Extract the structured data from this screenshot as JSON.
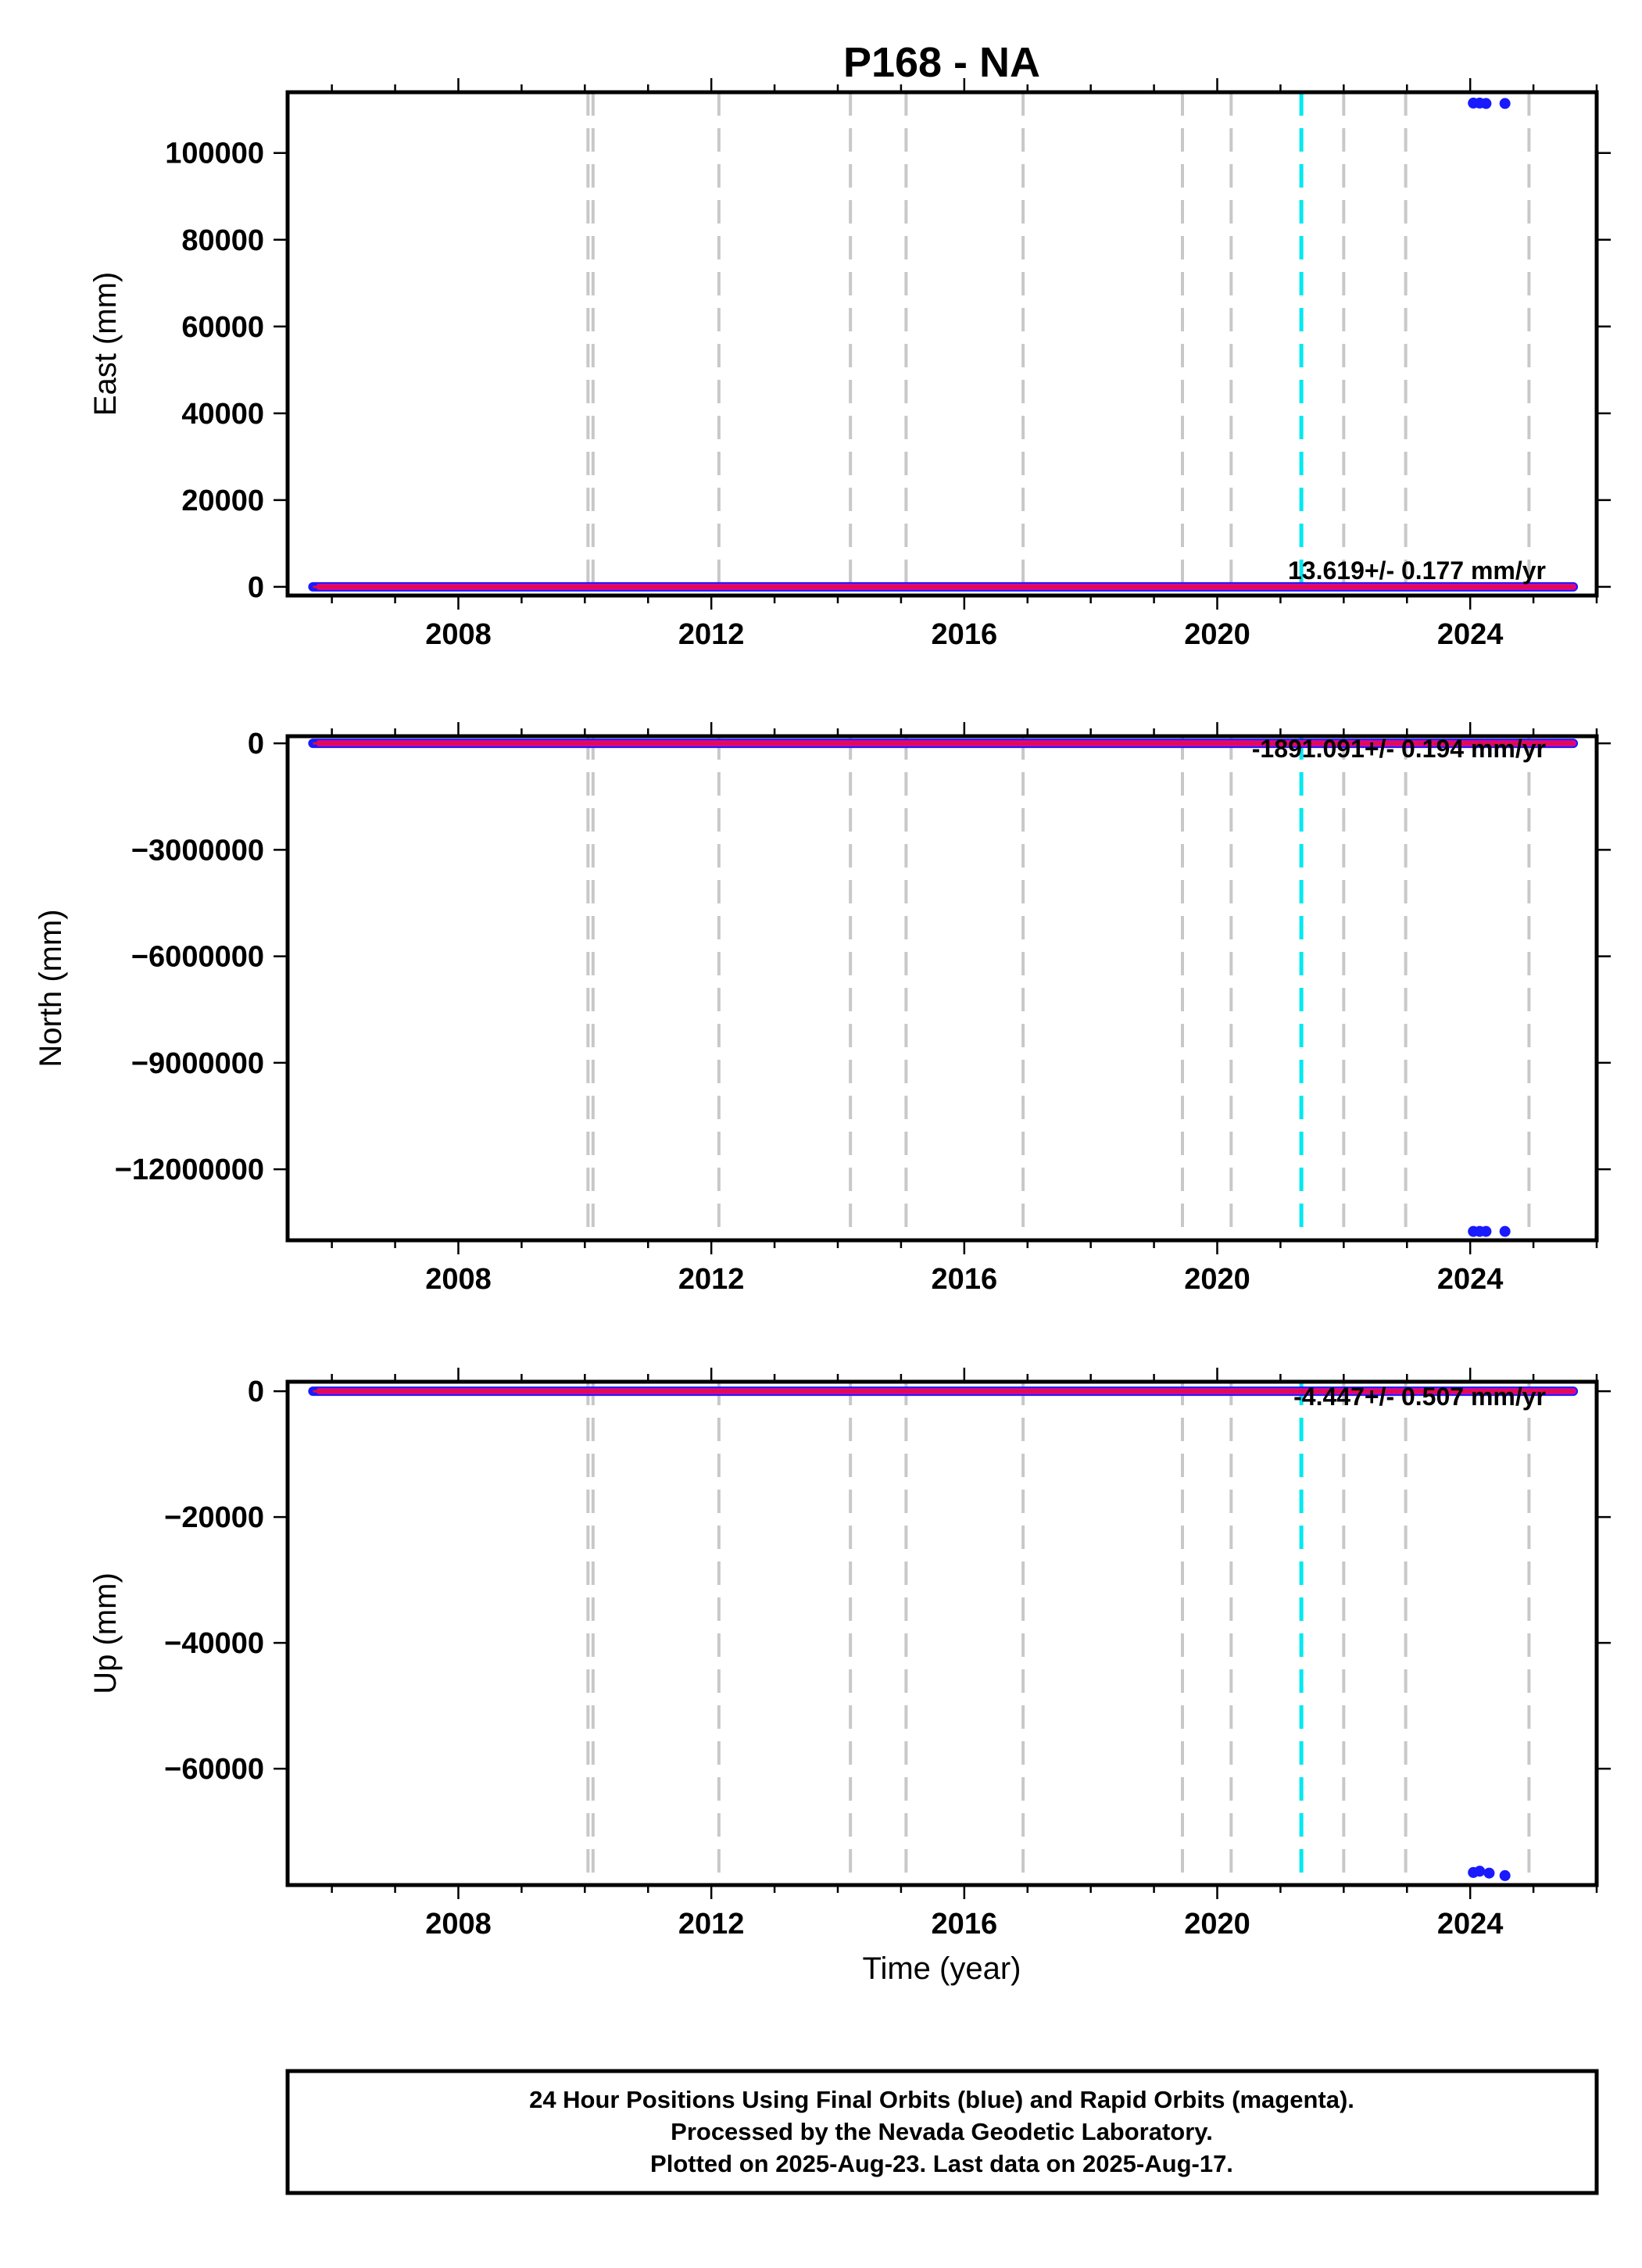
{
  "title": "P168 - NA",
  "x_axis_label": "Time (year)",
  "footer": {
    "line1": "24 Hour Positions Using Final Orbits (blue) and Rapid Orbits (magenta).",
    "line2": "Processed by the Nevada Geodetic Laboratory.",
    "line3": "Plotted on 2025-Aug-23. Last data on 2025-Aug-17."
  },
  "colors": {
    "final_orbits": "#1a1aff",
    "rapid_orbits": "#ff0080",
    "trend_line": "#e0103a",
    "event_lines": "#c8c8c8",
    "equipment_change": "#00e8f0"
  },
  "chart_data": [
    {
      "type": "scatter",
      "name": "East",
      "ylabel": "East (mm)",
      "xlim": [
        2005.3,
        2026.0
      ],
      "ylim": [
        -2000,
        114000
      ],
      "yticks": [
        0,
        20000,
        40000,
        60000,
        80000,
        100000
      ],
      "ytick_labels": [
        "0",
        "20000",
        "40000",
        "60000",
        "80000",
        "100000"
      ],
      "xticks": [
        2008,
        2012,
        2016,
        2020,
        2024
      ],
      "xtick_labels": [
        "2008",
        "2012",
        "2016",
        "2020",
        "2024"
      ],
      "rate_label": "13.619+/- 0.177 mm/yr",
      "main_series": {
        "x_start": 2005.7,
        "x_end": 2025.63,
        "y": 0
      },
      "outliers": [
        {
          "x": 2024.05,
          "y": 111500
        },
        {
          "x": 2024.15,
          "y": 111500
        },
        {
          "x": 2024.25,
          "y": 111400
        },
        {
          "x": 2024.55,
          "y": 111400
        }
      ]
    },
    {
      "type": "scatter",
      "name": "North",
      "ylabel": "North (mm)",
      "xlim": [
        2005.3,
        2026.0
      ],
      "ylim": [
        -14000000,
        200000
      ],
      "yticks": [
        0,
        -3000000,
        -6000000,
        -9000000,
        -12000000
      ],
      "ytick_labels": [
        "0",
        "−3000000",
        "−6000000",
        "−9000000",
        "−12000000"
      ],
      "xticks": [
        2008,
        2012,
        2016,
        2020,
        2024
      ],
      "xtick_labels": [
        "2008",
        "2012",
        "2016",
        "2020",
        "2024"
      ],
      "rate_label": "-1891.091+/- 0.194 mm/yr",
      "main_series": {
        "x_start": 2005.7,
        "x_end": 2025.63,
        "y": 0
      },
      "outliers": [
        {
          "x": 2024.05,
          "y": -13750000
        },
        {
          "x": 2024.15,
          "y": -13750000
        },
        {
          "x": 2024.25,
          "y": -13750000
        },
        {
          "x": 2024.55,
          "y": -13750000
        }
      ]
    },
    {
      "type": "scatter",
      "name": "Up",
      "ylabel": "Up (mm)",
      "xlim": [
        2005.3,
        2026.0
      ],
      "ylim": [
        -78500,
        1500
      ],
      "yticks": [
        0,
        -20000,
        -40000,
        -60000
      ],
      "ytick_labels": [
        "0",
        "−20000",
        "−40000",
        "−60000"
      ],
      "xticks": [
        2008,
        2012,
        2016,
        2020,
        2024
      ],
      "xtick_labels": [
        "2008",
        "2012",
        "2016",
        "2020",
        "2024"
      ],
      "rate_label": "-4.447+/- 0.507 mm/yr",
      "main_series": {
        "x_start": 2005.7,
        "x_end": 2025.63,
        "y": 0
      },
      "outliers": [
        {
          "x": 2024.05,
          "y": -76500
        },
        {
          "x": 2024.15,
          "y": -76300
        },
        {
          "x": 2024.3,
          "y": -76600
        },
        {
          "x": 2024.55,
          "y": -77000
        }
      ]
    }
  ],
  "event_lines_x": [
    2010.05,
    2010.13,
    2012.12,
    2014.2,
    2015.08,
    2016.93,
    2019.45,
    2020.22,
    2022.0,
    2022.98,
    2024.93
  ],
  "equipment_change_x": [
    2021.33
  ]
}
